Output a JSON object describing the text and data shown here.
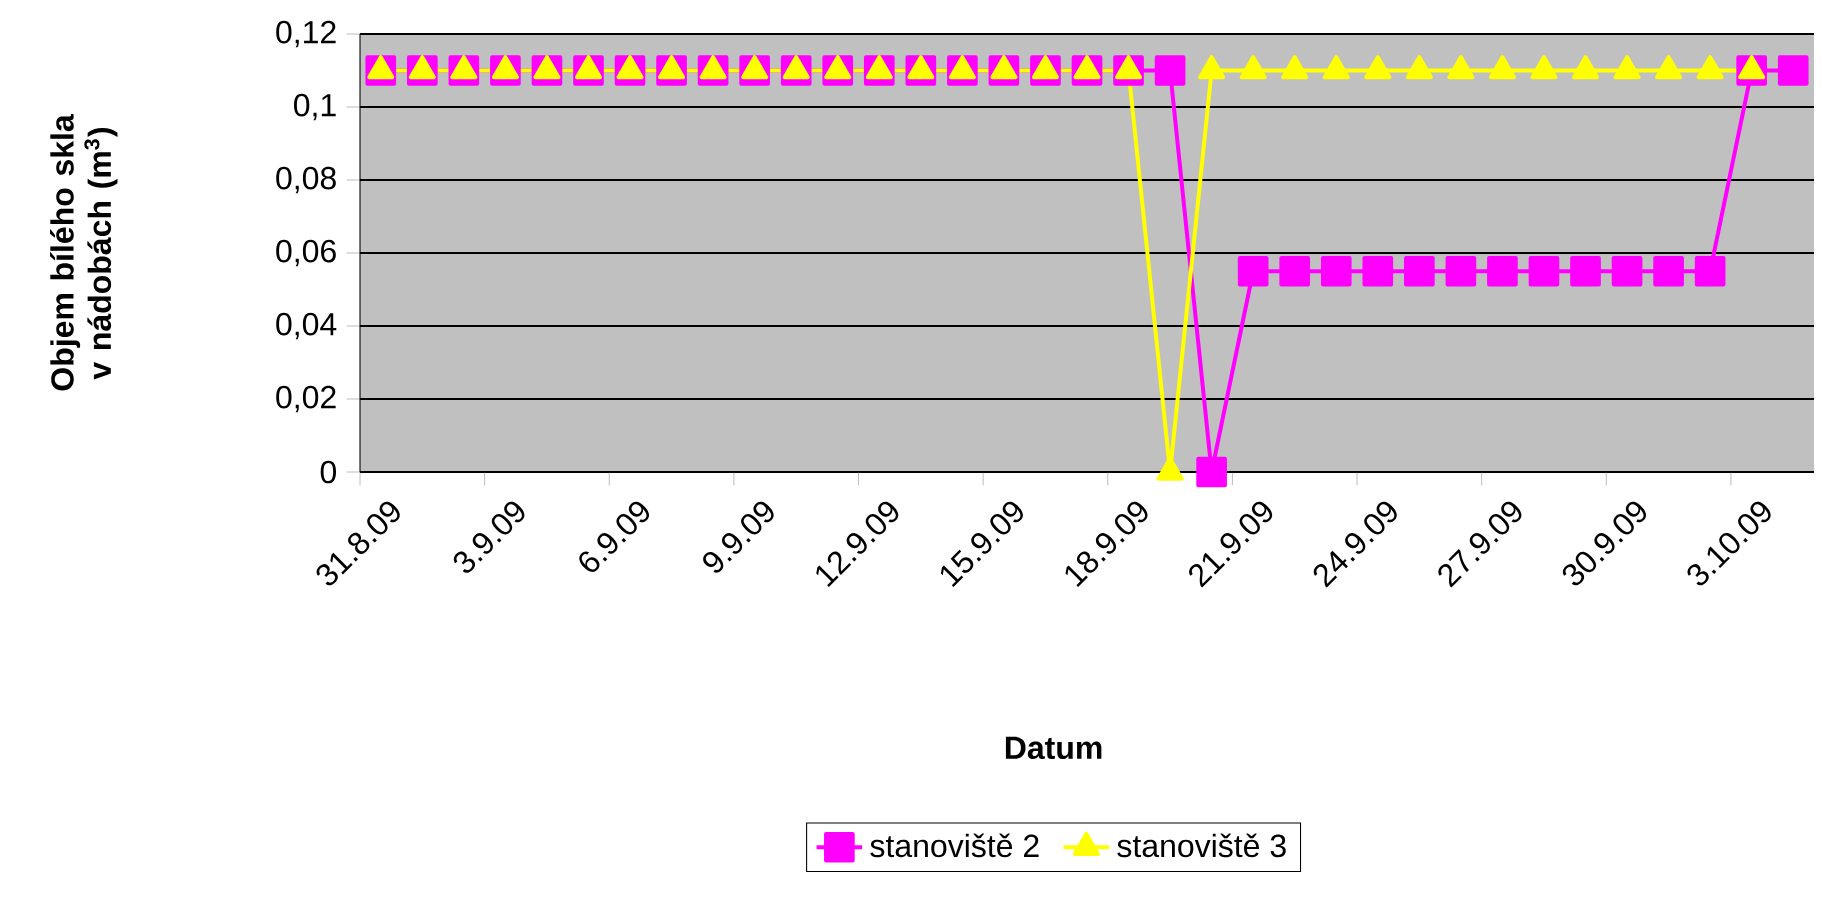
{
  "chart_data": {
    "type": "line",
    "xlabel": "Datum",
    "ylabel": "Objem bílého skla v nádobách (m$^{3}$)",
    "categories": [
      "31.8.09",
      null,
      null,
      "3.9.09",
      null,
      null,
      "6.9.09",
      null,
      null,
      "9.9.09",
      null,
      null,
      "12.9.09",
      null,
      null,
      "15.9.09",
      null,
      null,
      "18.9.09",
      null,
      null,
      "21.9.09",
      null,
      null,
      "24.9.09",
      null,
      null,
      "27.9.09",
      null,
      null,
      "30.9.09",
      null,
      null,
      "3.10.09",
      null
    ],
    "series": [
      {
        "name": "stanoviště 2",
        "color": "#ff00ff",
        "marker": "square",
        "values": [
          0.11,
          0.11,
          0.11,
          0.11,
          0.11,
          0.11,
          0.11,
          0.11,
          0.11,
          0.11,
          0.11,
          0.11,
          0.11,
          0.11,
          0.11,
          0.11,
          0.11,
          0.11,
          0.11,
          0.11,
          0,
          0.055,
          0.055,
          0.055,
          0.055,
          0.055,
          0.055,
          0.055,
          0.055,
          0.055,
          0.055,
          0.055,
          0.055,
          0.11,
          0.11
        ]
      },
      {
        "name": "stanoviště 3",
        "color": "#ffff00",
        "marker": "triangle",
        "values": [
          0.11,
          0.11,
          0.11,
          0.11,
          0.11,
          0.11,
          0.11,
          0.11,
          0.11,
          0.11,
          0.11,
          0.11,
          0.11,
          0.11,
          0.11,
          0.11,
          0.11,
          0.11,
          0.11,
          0,
          0.11,
          0.11,
          0.11,
          0.11,
          0.11,
          0.11,
          0.11,
          0.11,
          0.11,
          0.11,
          0.11,
          0.11,
          0.11,
          0.11,
          null
        ]
      }
    ],
    "ylim": [
      0,
      0.12
    ],
    "yticks": [
      0,
      {
        "value": 0.02,
        "label": "0,02"
      },
      {
        "value": 0.04,
        "label": "0,04"
      },
      {
        "value": 0.06,
        "label": "0,06"
      },
      {
        "value": 0.08,
        "label": "0,08"
      },
      {
        "value": 0.1,
        "label": "0,1"
      },
      {
        "value": 0.12,
        "label": "0,12"
      }
    ],
    "grid": "y",
    "legend": "bottom",
    "line_style": "solid"
  }
}
